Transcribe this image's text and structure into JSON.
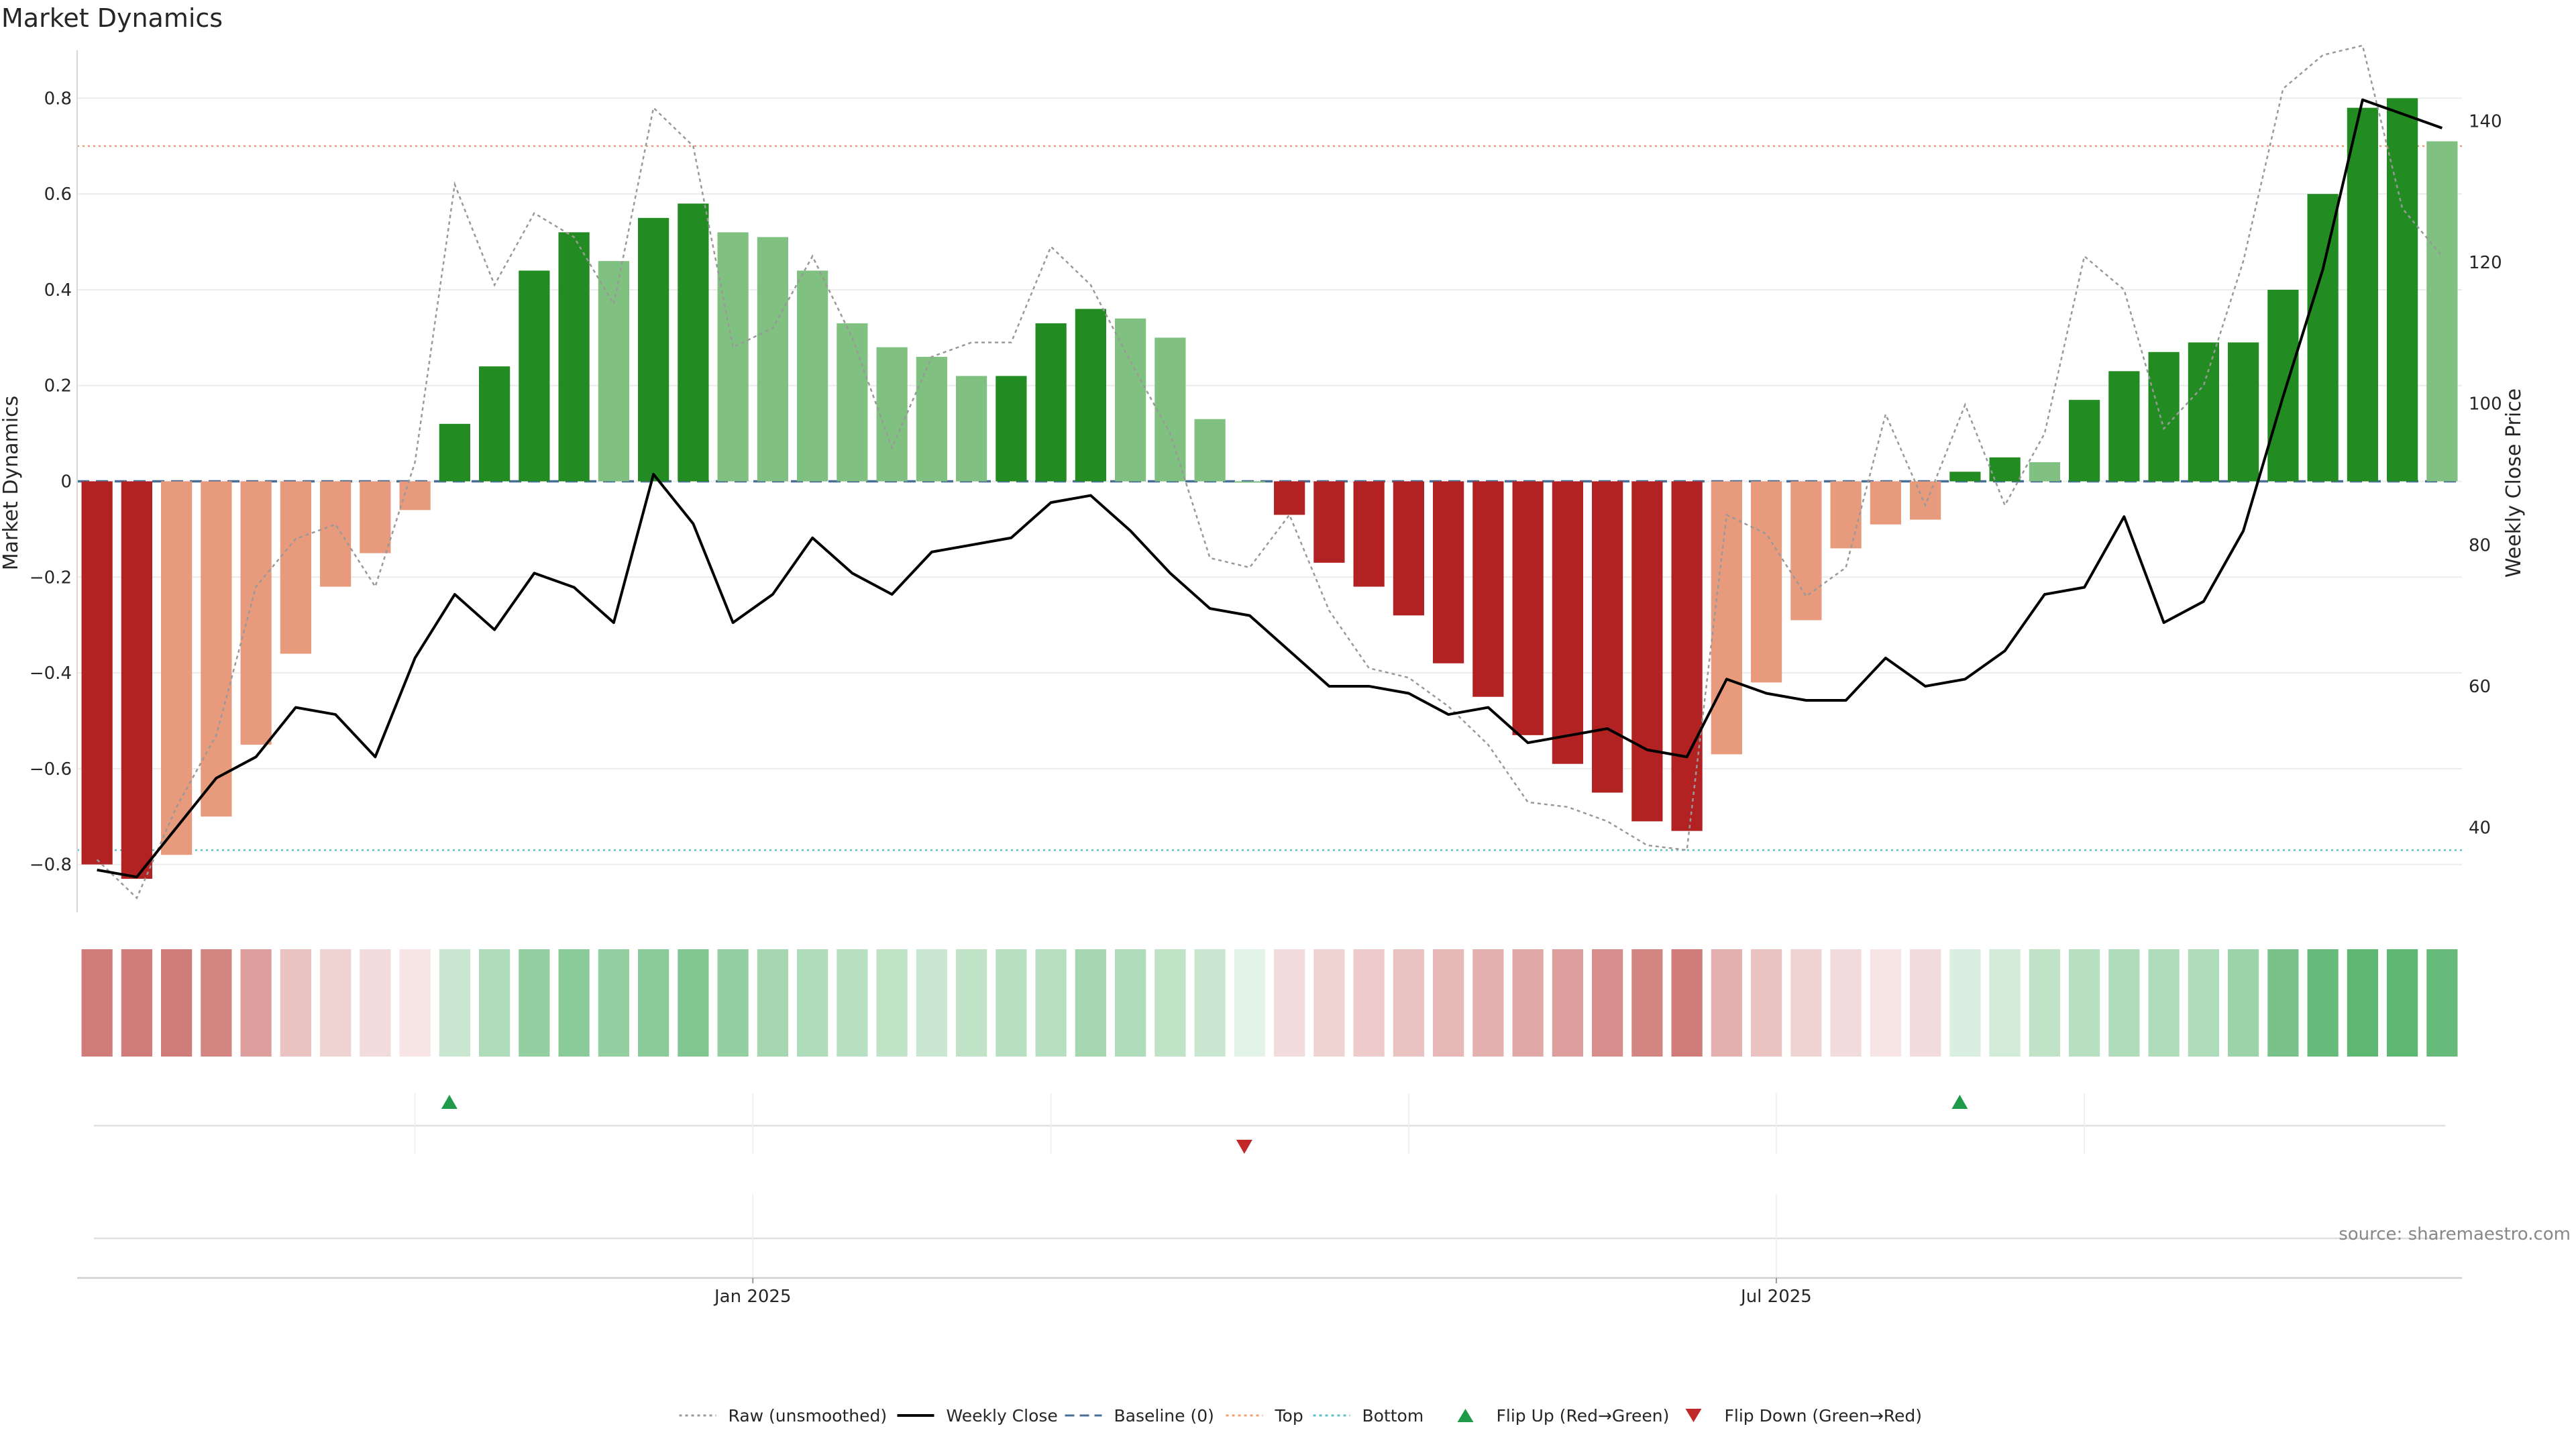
{
  "chart_data": {
    "type": "bar",
    "title": "Market Dynamics",
    "ylabel": "Market Dynamics",
    "y2label": "Weekly Close Price",
    "ylim": [
      -0.9,
      0.9
    ],
    "y2lim": [
      28,
      150
    ],
    "yticks": [
      "0.8",
      "0.6",
      "0.4",
      "0.2",
      "0",
      "−0.2",
      "−0.4",
      "−0.6",
      "−0.8"
    ],
    "yticks_values": [
      0.8,
      0.6,
      0.4,
      0.2,
      0,
      -0.2,
      -0.4,
      -0.6,
      -0.8
    ],
    "y2ticks": [
      "140",
      "120",
      "100",
      "80",
      "60",
      "40"
    ],
    "y2ticks_values": [
      140,
      120,
      100,
      80,
      60,
      40
    ],
    "xticks": [
      {
        "label": "Jan 2025",
        "index": 16.5
      },
      {
        "label": "Jul 2025",
        "index": 42.25
      }
    ],
    "levels": {
      "top": 0.7,
      "bottom": -0.77,
      "baseline": 0
    },
    "dynamics": [
      -0.8,
      -0.83,
      -0.78,
      -0.7,
      -0.55,
      -0.36,
      -0.22,
      -0.15,
      -0.06,
      0.12,
      0.24,
      0.44,
      0.52,
      0.46,
      0.55,
      0.58,
      0.52,
      0.51,
      0.44,
      0.33,
      0.28,
      0.26,
      0.22,
      0.22,
      0.33,
      0.36,
      0.34,
      0.3,
      0.13,
      0,
      -0.07,
      -0.17,
      -0.22,
      -0.28,
      -0.38,
      -0.45,
      -0.53,
      -0.59,
      -0.65,
      -0.71,
      -0.73,
      -0.57,
      -0.42,
      -0.29,
      -0.14,
      -0.09,
      -0.08,
      0.02,
      0.05,
      0.04,
      0.17,
      0.23,
      0.27,
      0.29,
      0.29,
      0.4,
      0.6,
      0.78,
      0.8,
      0.71
    ],
    "strong": [
      true,
      true,
      false,
      false,
      false,
      false,
      false,
      false,
      false,
      true,
      true,
      true,
      true,
      false,
      true,
      true,
      false,
      false,
      false,
      false,
      false,
      false,
      false,
      true,
      true,
      true,
      false,
      false,
      false,
      false,
      true,
      true,
      true,
      true,
      true,
      true,
      true,
      true,
      true,
      true,
      true,
      false,
      false,
      false,
      false,
      false,
      false,
      true,
      true,
      false,
      true,
      true,
      true,
      true,
      true,
      true,
      true,
      true,
      true,
      false
    ],
    "raw": [
      -0.79,
      -0.87,
      -0.68,
      -0.53,
      -0.22,
      -0.12,
      -0.09,
      -0.22,
      0.04,
      0.62,
      0.41,
      0.56,
      0.51,
      0.37,
      0.78,
      0.7,
      0.28,
      0.32,
      0.47,
      0.3,
      0.07,
      0.26,
      0.29,
      0.29,
      0.49,
      0.41,
      0.25,
      0.1,
      -0.16,
      -0.18,
      -0.07,
      -0.27,
      -0.39,
      -0.41,
      -0.47,
      -0.55,
      -0.67,
      -0.68,
      -0.71,
      -0.76,
      -0.77,
      -0.07,
      -0.11,
      -0.24,
      -0.18,
      0.14,
      -0.05,
      0.16,
      -0.05,
      0.1,
      0.47,
      0.4,
      0.11,
      0.2,
      0.46,
      0.82,
      0.89,
      0.91,
      0.57,
      0.47
    ],
    "weekly_close": [
      34,
      33,
      40,
      47,
      50,
      57,
      56,
      50,
      64,
      73,
      68,
      76,
      74,
      69,
      90,
      83,
      69,
      73,
      81,
      76,
      73,
      79,
      80,
      81,
      86,
      87,
      82,
      76,
      71,
      70,
      65,
      60,
      60,
      59,
      56,
      57,
      52,
      53,
      54,
      51,
      50,
      61,
      59,
      58,
      58,
      64,
      60,
      61,
      65,
      73,
      74,
      84,
      69,
      72,
      82,
      101,
      119,
      143,
      141,
      139
    ],
    "heat_intensity": [
      0.75,
      0.75,
      0.75,
      0.7,
      0.55,
      0.35,
      0.25,
      0.2,
      0.15,
      0.3,
      0.45,
      0.6,
      0.65,
      0.6,
      0.65,
      0.7,
      0.6,
      0.5,
      0.45,
      0.4,
      0.35,
      0.3,
      0.35,
      0.4,
      0.4,
      0.5,
      0.45,
      0.35,
      0.3,
      0.15,
      0.2,
      0.25,
      0.3,
      0.35,
      0.4,
      0.45,
      0.5,
      0.55,
      0.65,
      0.7,
      0.75,
      0.45,
      0.35,
      0.25,
      0.2,
      0.15,
      0.2,
      0.2,
      0.25,
      0.35,
      0.4,
      0.45,
      0.45,
      0.45,
      0.55,
      0.75,
      0.85,
      0.9,
      0.9,
      0.85
    ],
    "flip_up_indices": [
      9,
      47
    ],
    "flip_down_indices": [
      29
    ],
    "legend": [
      {
        "label": "Raw (unsmoothed)",
        "kind": "dotted-line",
        "color": "#999999"
      },
      {
        "label": "Weekly Close",
        "kind": "solid-line",
        "color": "#000000"
      },
      {
        "label": "Baseline (0)",
        "kind": "dashed-line",
        "color": "#4a6f96"
      },
      {
        "label": "Top",
        "kind": "dotted-line",
        "color": "#f0a070"
      },
      {
        "label": "Bottom",
        "kind": "dotted-line",
        "color": "#5bc0c8"
      },
      {
        "label": "Flip Up (Red→Green)",
        "kind": "triangle-up",
        "color": "#1f9a4a"
      },
      {
        "label": "Flip Down (Green→Red)",
        "kind": "triangle-down",
        "color": "#c0282a"
      }
    ],
    "legend_position": "bottom-center",
    "colors": {
      "pos_strong": "#228b22",
      "pos_weak": "#80c080",
      "neg_strong": "#b22222",
      "neg_weak": "#e89a7c",
      "close_line": "#000000",
      "raw_line": "#999999",
      "heat_pos_base": "#4caf63",
      "heat_neg_base": "#c0504d"
    },
    "source": "source: sharemaestro.com"
  }
}
